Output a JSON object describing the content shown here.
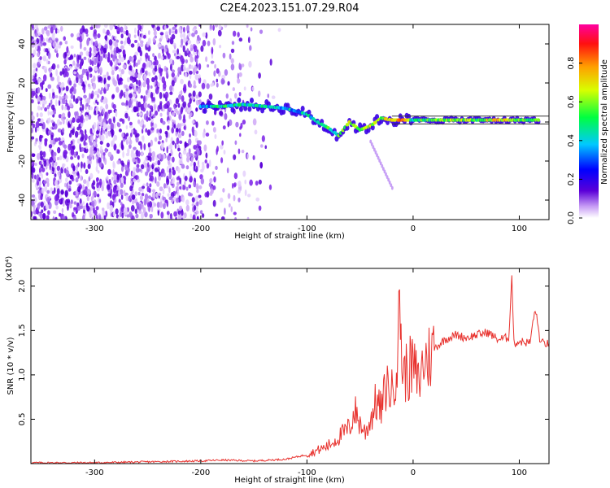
{
  "title": "C2E4.2023.151.07.29.R04",
  "colors": {
    "snr_line": "#e8322e",
    "axis": "#000000"
  },
  "chart_data": [
    {
      "type": "heatmap",
      "xlabel": "Height of straight line (km)",
      "ylabel": "Frequency (Hz)",
      "xlim": [
        -360,
        128
      ],
      "ylim": [
        -50,
        50
      ],
      "xticks": [
        "-300",
        "-200",
        "-100",
        "0",
        "100"
      ],
      "yticks": [
        "-40",
        "-20",
        "0",
        "20",
        "40"
      ],
      "colorbar": {
        "label": "Normalized spectral amplitude",
        "range": [
          0,
          1
        ],
        "ticks": [
          "0.0",
          "0.2",
          "0.4",
          "0.6",
          "0.8"
        ]
      },
      "ridge_points": [
        {
          "x": -200,
          "y": 8,
          "v": 0.3
        },
        {
          "x": -180,
          "y": 8,
          "v": 0.5
        },
        {
          "x": -160,
          "y": 9,
          "v": 0.4
        },
        {
          "x": -140,
          "y": 8,
          "v": 0.4
        },
        {
          "x": -120,
          "y": 7,
          "v": 0.35
        },
        {
          "x": -100,
          "y": 4,
          "v": 0.4
        },
        {
          "x": -90,
          "y": 0,
          "v": 0.45
        },
        {
          "x": -80,
          "y": -3,
          "v": 0.5
        },
        {
          "x": -70,
          "y": -7,
          "v": 0.5
        },
        {
          "x": -60,
          "y": 0,
          "v": 0.6
        },
        {
          "x": -50,
          "y": -4,
          "v": 0.6
        },
        {
          "x": -40,
          "y": -2,
          "v": 0.65
        },
        {
          "x": -30,
          "y": 2,
          "v": 0.6
        },
        {
          "x": -20,
          "y": 1,
          "v": 0.75
        },
        {
          "x": -10,
          "y": 1,
          "v": 0.8
        },
        {
          "x": 0,
          "y": 1,
          "v": 0.5
        },
        {
          "x": 20,
          "y": 1,
          "v": 0.55
        },
        {
          "x": 40,
          "y": 1,
          "v": 0.6
        },
        {
          "x": 60,
          "y": 1,
          "v": 0.55
        },
        {
          "x": 80,
          "y": 1,
          "v": 0.7
        },
        {
          "x": 100,
          "y": 1,
          "v": 0.55
        },
        {
          "x": 120,
          "y": 1,
          "v": 0.55
        }
      ]
    },
    {
      "type": "line",
      "xlabel": "Height of straight line (km)",
      "ylabel": "SNR (10 * v/v)",
      "y_multiplier": "(x10⁴)",
      "xlim": [
        -360,
        128
      ],
      "ylim": [
        0,
        2.2
      ],
      "xticks": [
        "-300",
        "-200",
        "-100",
        "0",
        "100"
      ],
      "yticks": [
        "0.5",
        "1.0",
        "1.5",
        "2.0"
      ],
      "series": [
        {
          "x": [
            -360,
            -300,
            -250,
            -200,
            -180,
            -150,
            -120,
            -100,
            -90,
            -80,
            -70,
            -60,
            -55,
            -50,
            -45,
            -40,
            -35,
            -30,
            -25,
            -20,
            -15,
            -12,
            -10,
            -5,
            0,
            5,
            10,
            15,
            20,
            30,
            40,
            50,
            60,
            70,
            80,
            90,
            93,
            95,
            100,
            110,
            115,
            120,
            128
          ],
          "y": [
            0.01,
            0.01,
            0.02,
            0.03,
            0.04,
            0.03,
            0.05,
            0.1,
            0.15,
            0.2,
            0.3,
            0.4,
            0.6,
            0.45,
            0.35,
            0.5,
            0.7,
            0.6,
            0.9,
            0.8,
            1.2,
            1.8,
            1.0,
            1.05,
            1.1,
            0.9,
            1.15,
            1.2,
            1.3,
            1.4,
            1.45,
            1.42,
            1.45,
            1.48,
            1.4,
            1.42,
            2.1,
            1.35,
            1.38,
            1.36,
            1.75,
            1.36,
            1.35
          ]
        }
      ]
    }
  ]
}
